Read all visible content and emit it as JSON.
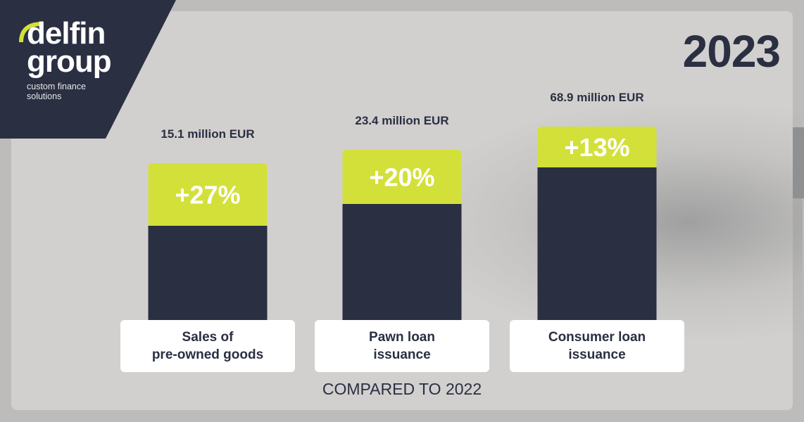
{
  "brand": {
    "name_line1": "delfin",
    "name_line2": "group",
    "tagline_line1": "custom finance",
    "tagline_line2": "solutions"
  },
  "year": "2023",
  "footer": "COMPARED TO 2022",
  "colors": {
    "navy": "#2a2f42",
    "lime": "#d3e03a",
    "card": "#d1d0ce",
    "background": "#bdbcba",
    "label_bg": "#ffffff"
  },
  "chart_data": {
    "type": "bar",
    "categories": [
      "Sales of\npre-owned goods",
      "Pawn loan\nissuance",
      "Consumer loan\nissuance"
    ],
    "values": [
      15.1,
      23.4,
      68.9
    ],
    "value_labels": [
      "15.1 million EUR",
      "23.4 million EUR",
      "68.9 million EUR"
    ],
    "growth_labels": [
      "+27%",
      "+20%",
      "+13%"
    ],
    "growth": [
      27,
      20,
      13
    ],
    "unit": "million EUR"
  }
}
